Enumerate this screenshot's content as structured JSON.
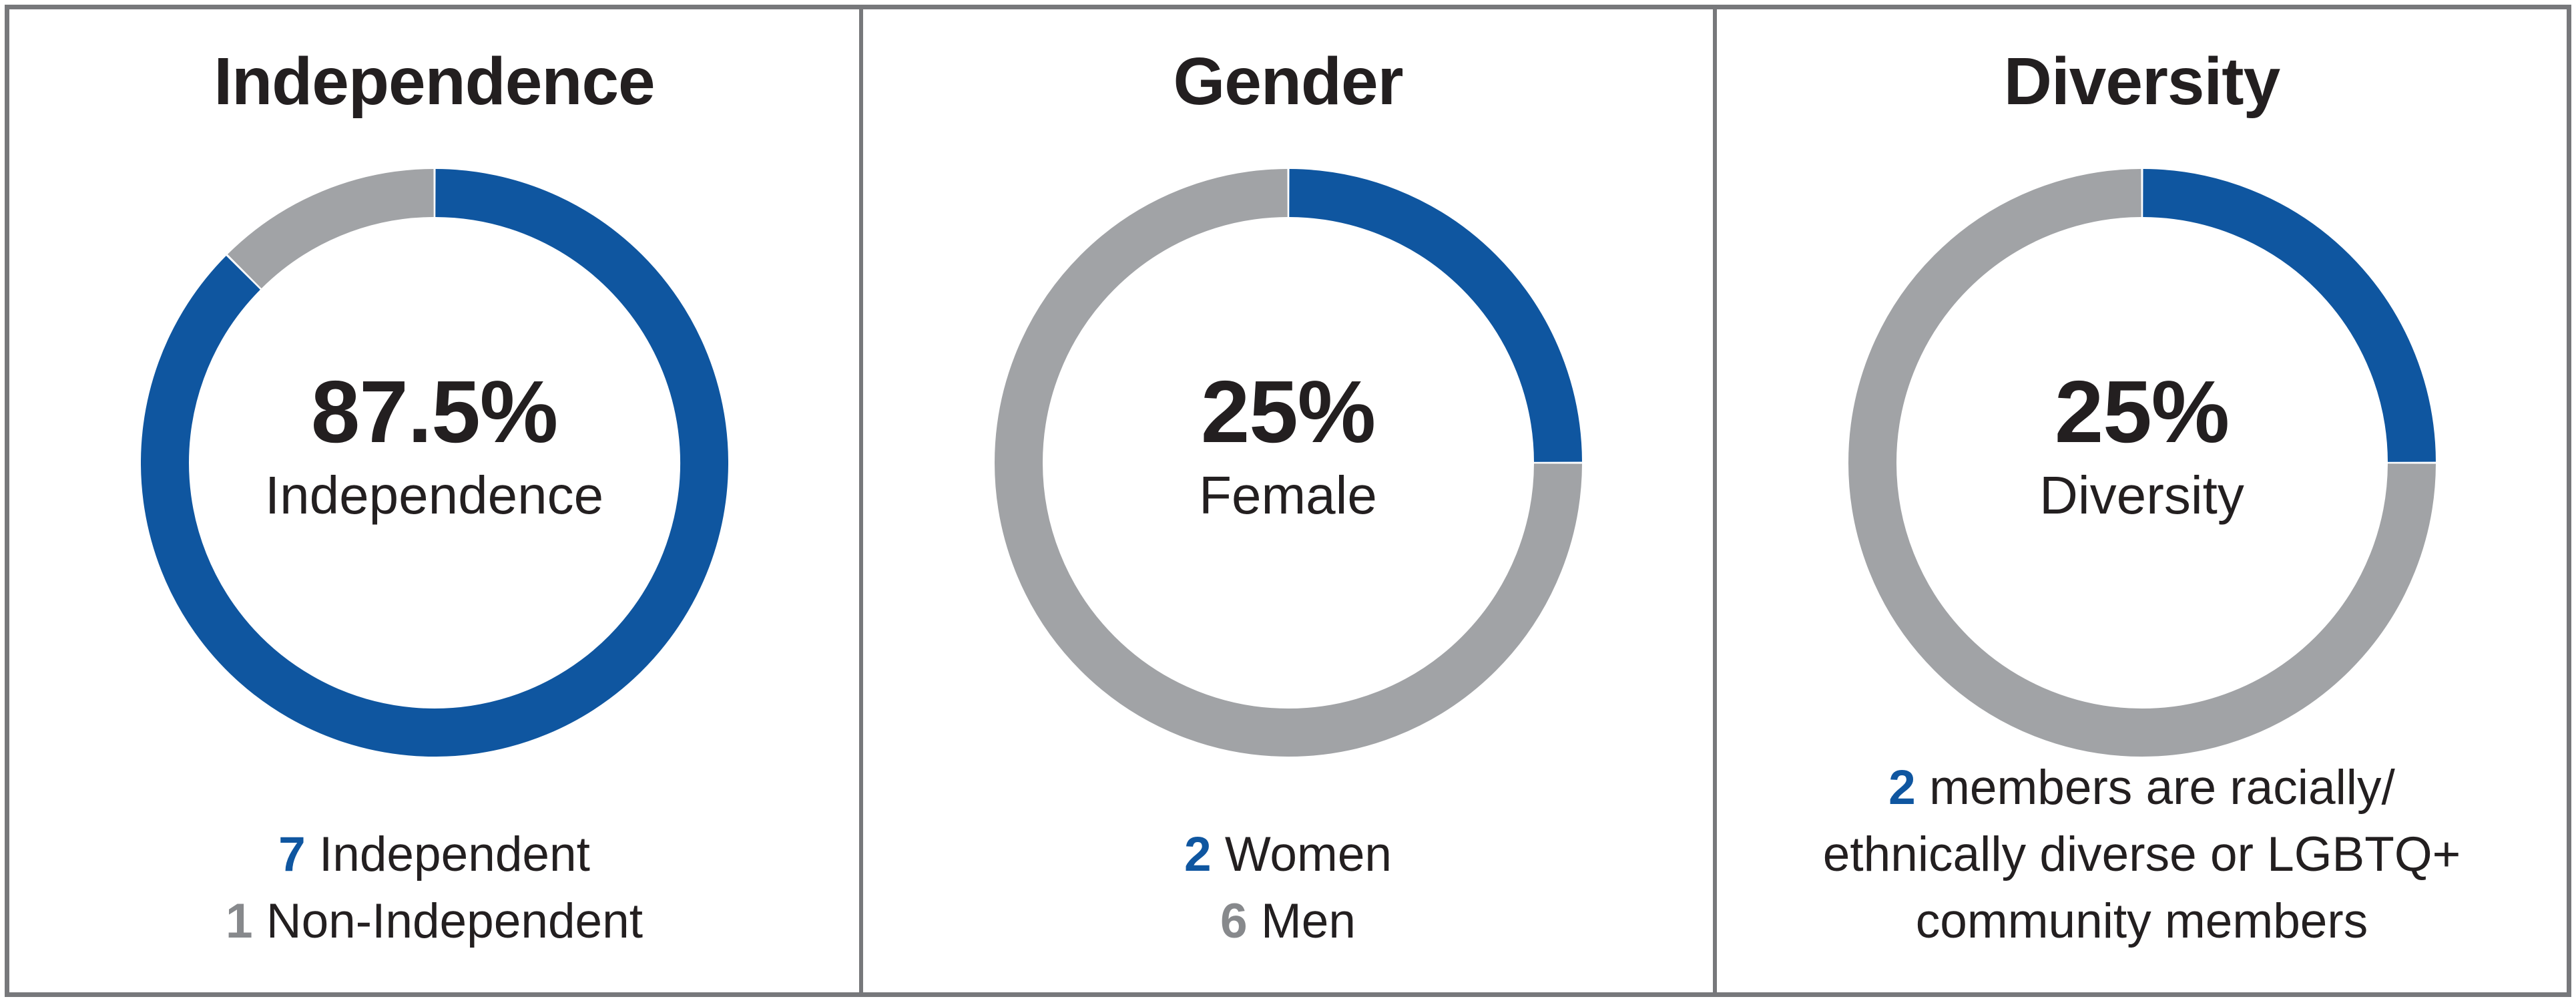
{
  "palette": {
    "accent_blue": "#0f56a0",
    "arc_gray": "#a1a3a6",
    "number_gray": "#87898c",
    "border_gray": "#77787b",
    "text_black": "#231f20",
    "background": "#ffffff"
  },
  "chart_data": [
    {
      "type": "donut",
      "title": "Independence",
      "center_value": "87.5%",
      "center_label": "Independence",
      "start_angle_deg": 0,
      "direction": "clockwise",
      "ring_outer_radius_px": 440,
      "ring_thickness_px": 72,
      "segments": [
        {
          "label": "Independent",
          "count": 7,
          "pct": 87.5,
          "color": "#0f56a0"
        },
        {
          "label": "Non-Independent",
          "count": 1,
          "pct": 12.5,
          "color": "#a1a3a6"
        }
      ],
      "caption_lines": [
        {
          "num": "7",
          "num_color": "#0f56a0",
          "text": " Independent"
        },
        {
          "num": "1",
          "num_color": "#87898c",
          "text": " Non-Independent"
        }
      ]
    },
    {
      "type": "donut",
      "title": "Gender",
      "center_value": "25%",
      "center_label": "Female",
      "start_angle_deg": 0,
      "direction": "clockwise",
      "ring_outer_radius_px": 440,
      "ring_thickness_px": 72,
      "segments": [
        {
          "label": "Women",
          "count": 2,
          "pct": 25,
          "color": "#0f56a0"
        },
        {
          "label": "Men",
          "count": 6,
          "pct": 75,
          "color": "#a1a3a6"
        }
      ],
      "caption_lines": [
        {
          "num": "2",
          "num_color": "#0f56a0",
          "text": " Women"
        },
        {
          "num": "6",
          "num_color": "#87898c",
          "text": " Men"
        }
      ]
    },
    {
      "type": "donut",
      "title": "Diversity",
      "center_value": "25%",
      "center_label": "Diversity",
      "start_angle_deg": 0,
      "direction": "clockwise",
      "ring_outer_radius_px": 440,
      "ring_thickness_px": 72,
      "segments": [
        {
          "label": "members are racially/ethnically diverse or LGBTQ+ community members",
          "count": 2,
          "pct": 25,
          "color": "#0f56a0"
        },
        {
          "pct": 75,
          "color": "#a1a3a6"
        }
      ],
      "caption_lines": [
        {
          "num": "2",
          "num_color": "#0f56a0",
          "text": " members are racially/"
        },
        {
          "num": "",
          "num_color": "",
          "text": "ethnically diverse or LGBTQ+"
        },
        {
          "num": "",
          "num_color": "",
          "text": "community members"
        }
      ]
    }
  ]
}
